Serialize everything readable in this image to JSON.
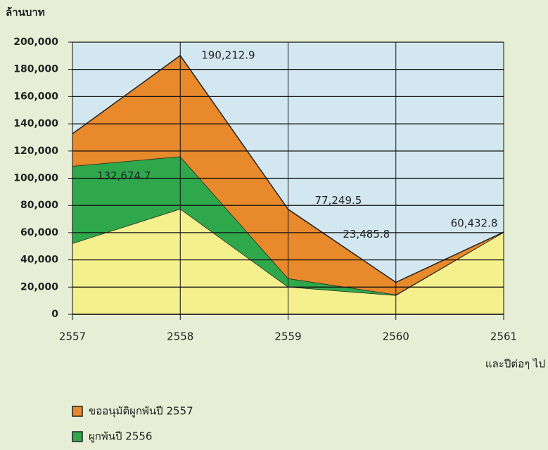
{
  "chart_data": {
    "type": "stacked_area",
    "ylabel": "ล้านบาท",
    "xlabel": "และปีต่อๆ ไป",
    "categories": [
      "2557",
      "2558",
      "2559",
      "2560",
      "2561"
    ],
    "series": [
      {
        "color": "#f5f08e",
        "values": [
          52200,
          77500,
          20200,
          14000,
          60432.8
        ]
      },
      {
        "name": "ผูกพันปี 2556",
        "color": "#2fa84c",
        "values": [
          56800,
          38500,
          6200,
          500,
          0
        ]
      },
      {
        "name": "ขออนุมัติผูกพันปี 2557",
        "color": "#e8892b",
        "values": [
          23674.7,
          74212.9,
          50849.5,
          8985.8,
          0
        ]
      }
    ],
    "totals": [
      132674.7,
      190212.9,
      77249.5,
      23485.8,
      60432.8
    ],
    "total_labels": [
      "132,674.7",
      "190,212.9",
      "77,249.5",
      "23,485.8",
      "60,432.8"
    ],
    "ylim": [
      0,
      200000
    ],
    "yticks": [
      {
        "value": 0,
        "label": "0"
      },
      {
        "value": 20000,
        "label": "20,000"
      },
      {
        "value": 40000,
        "label": "40,000"
      },
      {
        "value": 60000,
        "label": "60,000"
      },
      {
        "value": 80000,
        "label": "80,000"
      },
      {
        "value": 100000,
        "label": "100,000"
      },
      {
        "value": 120000,
        "label": "120,000"
      },
      {
        "value": 140000,
        "label": "140,000"
      },
      {
        "value": 160000,
        "label": "160,000"
      },
      {
        "value": 180000,
        "label": "180,000"
      },
      {
        "value": 200000,
        "label": "200,000"
      }
    ],
    "grid": true,
    "plot_background": "#d3e7f0"
  }
}
